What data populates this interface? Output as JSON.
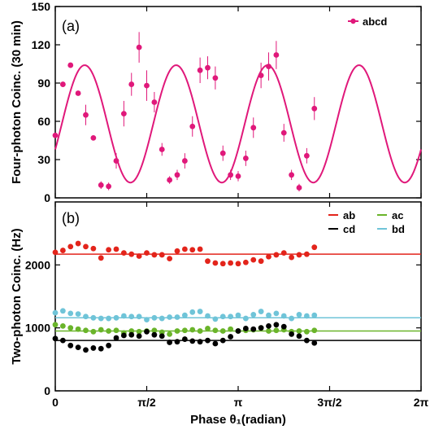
{
  "chart_data": [
    {
      "panel_label": "(a)",
      "type": "scatter",
      "ylabel": "Four-photon Coinc. (30 min)",
      "ylim": [
        0,
        150
      ],
      "yticks": [
        "0",
        "30",
        "60",
        "90",
        "120",
        "150"
      ],
      "xlim": [
        0,
        6.2832
      ],
      "grid": false,
      "legend": {
        "placement": "top-right",
        "entries": [
          {
            "name": "abcd",
            "color": "#e0187a",
            "marker": "filled-circle-with-line"
          }
        ]
      },
      "series": [
        {
          "name": "abcd",
          "color": "#e0187a",
          "points": [
            {
              "x": 0.0,
              "y": 49,
              "err": 0
            },
            {
              "x": 0.1309,
              "y": 89,
              "err": 0
            },
            {
              "x": 0.2618,
              "y": 104,
              "err": 0
            },
            {
              "x": 0.3927,
              "y": 82,
              "err": 0
            },
            {
              "x": 0.5236,
              "y": 65,
              "err": 8
            },
            {
              "x": 0.6545,
              "y": 47,
              "err": 0
            },
            {
              "x": 0.7854,
              "y": 10,
              "err": 3
            },
            {
              "x": 0.9163,
              "y": 9,
              "err": 3
            },
            {
              "x": 1.0472,
              "y": 29,
              "err": 6
            },
            {
              "x": 1.1781,
              "y": 66,
              "err": 10
            },
            {
              "x": 1.309,
              "y": 89,
              "err": 9
            },
            {
              "x": 1.4399,
              "y": 118,
              "err": 12
            },
            {
              "x": 1.5708,
              "y": 88,
              "err": 12
            },
            {
              "x": 1.7017,
              "y": 75,
              "err": 8
            },
            {
              "x": 1.8326,
              "y": 38,
              "err": 5
            },
            {
              "x": 1.9635,
              "y": 14,
              "err": 3
            },
            {
              "x": 2.0944,
              "y": 18,
              "err": 4
            },
            {
              "x": 2.2253,
              "y": 29,
              "err": 6
            },
            {
              "x": 2.3562,
              "y": 56,
              "err": 8
            },
            {
              "x": 2.4871,
              "y": 100,
              "err": 10
            },
            {
              "x": 2.618,
              "y": 102,
              "err": 9
            },
            {
              "x": 2.7489,
              "y": 94,
              "err": 9
            },
            {
              "x": 2.8798,
              "y": 35,
              "err": 6
            },
            {
              "x": 3.0107,
              "y": 18,
              "err": 4
            },
            {
              "x": 3.1416,
              "y": 17,
              "err": 4
            },
            {
              "x": 3.2725,
              "y": 31,
              "err": 6
            },
            {
              "x": 3.4034,
              "y": 55,
              "err": 8
            },
            {
              "x": 3.5343,
              "y": 96,
              "err": 10
            },
            {
              "x": 3.6652,
              "y": 103,
              "err": 11
            },
            {
              "x": 3.7961,
              "y": 112,
              "err": 11
            },
            {
              "x": 3.927,
              "y": 51,
              "err": 7
            },
            {
              "x": 4.0579,
              "y": 18,
              "err": 4
            },
            {
              "x": 4.1888,
              "y": 8,
              "err": 3
            },
            {
              "x": 4.3197,
              "y": 33,
              "err": 6
            },
            {
              "x": 4.4506,
              "y": 70,
              "err": 9
            }
          ]
        }
      ],
      "fit": {
        "name": "abcd",
        "color": "#e0187a",
        "mean": 58,
        "amplitude": 46,
        "cycles_per_2pi": 4,
        "phase": -0.45
      }
    },
    {
      "panel_label": "(b)",
      "type": "scatter",
      "xlabel": "Phase θ₁(radian)",
      "ylabel": "Two-photon Coinc. (Hz)",
      "ylim": [
        0,
        3000
      ],
      "yticks": [
        "0",
        "1000",
        "2000"
      ],
      "xlim": [
        0,
        6.2832
      ],
      "xticks": [
        "0",
        "π/2",
        "π",
        "3π/2",
        "2π"
      ],
      "grid": false,
      "legend": {
        "placement": "top-right",
        "entries": [
          {
            "name": "ab",
            "color": "#e3241b"
          },
          {
            "name": "ac",
            "color": "#6ab42a"
          },
          {
            "name": "cd",
            "color": "#000000"
          },
          {
            "name": "bd",
            "color": "#6fc4d8"
          }
        ]
      },
      "series": [
        {
          "name": "ab",
          "color": "#e3241b",
          "line": 2170,
          "x": [
            0.0,
            0.1309,
            0.2618,
            0.3927,
            0.5236,
            0.6545,
            0.7854,
            0.9163,
            1.0472,
            1.1781,
            1.309,
            1.4399,
            1.5708,
            1.7017,
            1.8326,
            1.9635,
            2.0944,
            2.2253,
            2.3562,
            2.4871,
            2.618,
            2.7489,
            2.8798,
            3.0107,
            3.1416,
            3.2725,
            3.4034,
            3.5343,
            3.6652,
            3.7961,
            3.927,
            4.0579,
            4.1888,
            4.3197,
            4.4506
          ],
          "y": [
            2200,
            2230,
            2290,
            2340,
            2290,
            2260,
            2110,
            2240,
            2250,
            2190,
            2170,
            2140,
            2190,
            2160,
            2160,
            2100,
            2220,
            2250,
            2240,
            2250,
            2060,
            2030,
            2020,
            2030,
            2020,
            2040,
            2080,
            2060,
            2130,
            2160,
            2190,
            2120,
            2160,
            2170,
            2280
          ]
        },
        {
          "name": "ac",
          "color": "#6ab42a",
          "line": 950,
          "x": [
            0.0,
            0.1309,
            0.2618,
            0.3927,
            0.5236,
            0.6545,
            0.7854,
            0.9163,
            1.0472,
            1.1781,
            1.309,
            1.4399,
            1.5708,
            1.7017,
            1.8326,
            1.9635,
            2.0944,
            2.2253,
            2.3562,
            2.4871,
            2.618,
            2.7489,
            2.8798,
            3.0107,
            3.1416,
            3.2725,
            3.4034,
            3.5343,
            3.6652,
            3.7961,
            3.927,
            4.0579,
            4.1888,
            4.3197,
            4.4506
          ],
          "y": [
            1050,
            1030,
            1000,
            980,
            960,
            940,
            970,
            950,
            960,
            920,
            950,
            940,
            950,
            960,
            930,
            900,
            950,
            960,
            970,
            950,
            990,
            960,
            950,
            980,
            950,
            960,
            970,
            1000,
            950,
            960,
            970,
            940,
            950,
            940,
            960
          ]
        },
        {
          "name": "cd",
          "color": "#000000",
          "line": 800,
          "x": [
            0.0,
            0.1309,
            0.2618,
            0.3927,
            0.5236,
            0.6545,
            0.7854,
            0.9163,
            1.0472,
            1.1781,
            1.309,
            1.4399,
            1.5708,
            1.7017,
            1.8326,
            1.9635,
            2.0944,
            2.2253,
            2.3562,
            2.4871,
            2.618,
            2.7489,
            2.8798,
            3.0107,
            3.1416,
            3.2725,
            3.4034,
            3.5343,
            3.6652,
            3.7961,
            3.927,
            4.0579,
            4.1888,
            4.3197,
            4.4506
          ],
          "y": [
            830,
            800,
            720,
            690,
            650,
            680,
            670,
            720,
            840,
            880,
            890,
            870,
            940,
            890,
            870,
            770,
            780,
            820,
            790,
            780,
            800,
            750,
            800,
            860,
            950,
            990,
            980,
            1000,
            1030,
            1050,
            1020,
            900,
            870,
            800,
            760
          ]
        },
        {
          "name": "bd",
          "color": "#6fc4d8",
          "line": 1160,
          "x": [
            0.0,
            0.1309,
            0.2618,
            0.3927,
            0.5236,
            0.6545,
            0.7854,
            0.9163,
            1.0472,
            1.1781,
            1.309,
            1.4399,
            1.5708,
            1.7017,
            1.8326,
            1.9635,
            2.0944,
            2.2253,
            2.3562,
            2.4871,
            2.618,
            2.7489,
            2.8798,
            3.0107,
            3.1416,
            3.2725,
            3.4034,
            3.5343,
            3.6652,
            3.7961,
            3.927,
            4.0579,
            4.1888,
            4.3197,
            4.4506
          ],
          "y": [
            1240,
            1270,
            1230,
            1220,
            1180,
            1160,
            1150,
            1150,
            1160,
            1190,
            1180,
            1180,
            1130,
            1160,
            1150,
            1170,
            1170,
            1200,
            1250,
            1260,
            1190,
            1140,
            1180,
            1180,
            1200,
            1150,
            1210,
            1260,
            1200,
            1230,
            1190,
            1150,
            1210,
            1190,
            1200
          ]
        }
      ]
    }
  ]
}
